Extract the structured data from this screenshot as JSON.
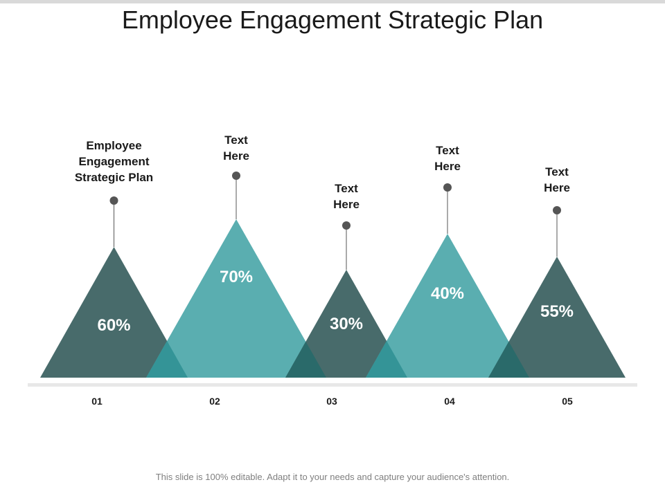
{
  "title": "Employee Engagement Strategic Plan",
  "footer": "This slide is 100% editable. Adapt it to your needs and capture your audience's attention.",
  "colors": {
    "dark": "#486b6b",
    "light": "#5aaeb0",
    "overlap": "#2a6a6a",
    "overlap_alt": "#349497",
    "line": "#555555",
    "baseline": "#e8e8e8"
  },
  "items": [
    {
      "number": "01",
      "percent": "60%",
      "label": [
        "Employee",
        "Engagement",
        "Strategic Plan"
      ],
      "shade": "dark"
    },
    {
      "number": "02",
      "percent": "70%",
      "label": [
        "Text",
        "Here"
      ],
      "shade": "light"
    },
    {
      "number": "03",
      "percent": "30%",
      "label": [
        "Text",
        "Here"
      ],
      "shade": "dark"
    },
    {
      "number": "04",
      "percent": "40%",
      "label": [
        "Text",
        "Here"
      ],
      "shade": "light"
    },
    {
      "number": "05",
      "percent": "55%",
      "label": [
        "Text",
        "Here"
      ],
      "shade": "dark"
    }
  ]
}
